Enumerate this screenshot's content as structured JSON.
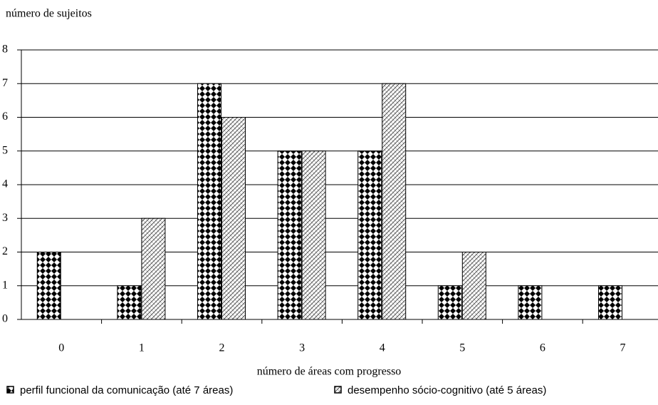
{
  "chart_data": {
    "type": "bar",
    "y_label": "número de sujeitos",
    "x_label": "número de áreas com progresso",
    "categories": [
      "0",
      "1",
      "2",
      "3",
      "4",
      "5",
      "6",
      "7"
    ],
    "series": [
      {
        "name": "perfil funcional da comunicação (até 7 áreas)",
        "color": "#000000",
        "values": [
          2,
          1,
          7,
          5,
          5,
          1,
          1,
          1
        ]
      },
      {
        "name": "desempenho sócio-cognitivo (até 5 áreas)",
        "color": "#555555",
        "values": [
          0,
          3,
          6,
          5,
          7,
          2,
          0,
          0
        ]
      }
    ],
    "ylim": [
      0,
      8
    ],
    "yticks": [
      0,
      1,
      2,
      3,
      4,
      5,
      6,
      7,
      8
    ],
    "grid": true
  }
}
